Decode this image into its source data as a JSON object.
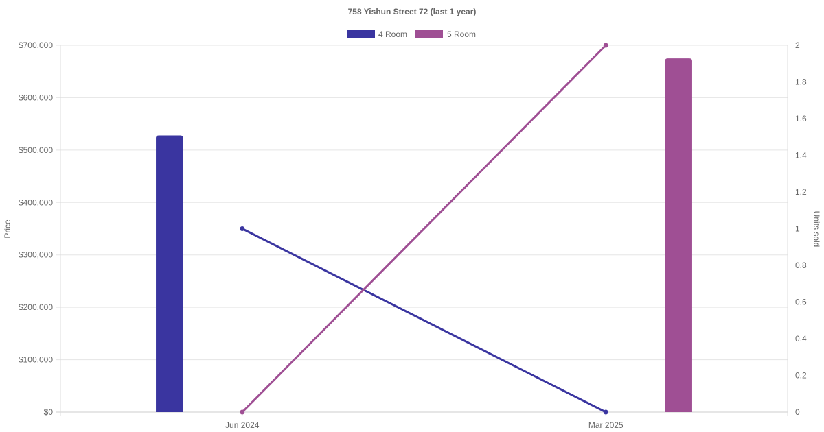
{
  "chart_data": {
    "type": "bar",
    "title": "758 Yishun Street 72 (last 1 year)",
    "categories": [
      "Jun 2024",
      "Mar 2025"
    ],
    "ylabel": "Price",
    "y2label": "Units sold",
    "ylim": [
      0,
      700000
    ],
    "y2lim": [
      0,
      2
    ],
    "y_ticks": [
      "$0",
      "$100,000",
      "$200,000",
      "$300,000",
      "$400,000",
      "$500,000",
      "$600,000",
      "$700,000"
    ],
    "y2_ticks": [
      "0",
      "0.2",
      "0.4",
      "0.6",
      "0.8",
      "1",
      "1.2",
      "1.4",
      "1.6",
      "1.8",
      "2"
    ],
    "grid": true,
    "legend_position": "top",
    "bar_series": [
      {
        "name": "4 Room",
        "color": "#3a35a0",
        "values": [
          528000,
          null
        ]
      },
      {
        "name": "5 Room",
        "color": "#9f4f94",
        "values": [
          null,
          675000
        ]
      }
    ],
    "line_series": [
      {
        "name": "4 Room",
        "color": "#3a35a0",
        "values": [
          1,
          0
        ],
        "axis": "right"
      },
      {
        "name": "5 Room",
        "color": "#9f4f94",
        "values": [
          0,
          2
        ],
        "axis": "right"
      }
    ],
    "legend": [
      {
        "name": "4 Room",
        "color": "#3a35a0"
      },
      {
        "name": "5 Room",
        "color": "#9f4f94"
      }
    ]
  }
}
